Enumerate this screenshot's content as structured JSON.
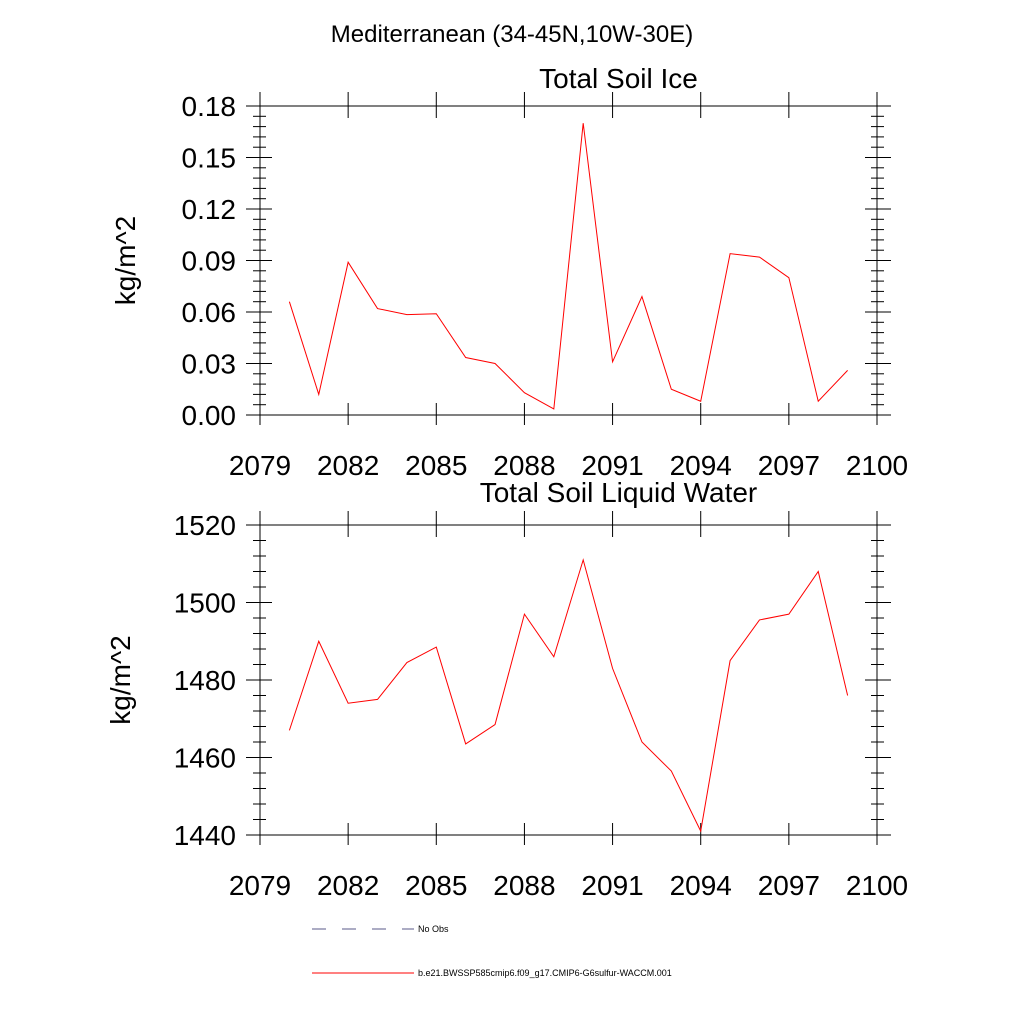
{
  "figure": {
    "suptitle": "Mediterranean (34-45N,10W-30E)"
  },
  "legend": {
    "items": [
      {
        "label": "No Obs",
        "style": "dashed",
        "color": "#5a5a8a"
      },
      {
        "label": "b.e21.BWSSP585cmip6.f09_g17.CMIP6-G6sulfur-WACCM.001",
        "style": "solid",
        "color": "#ff0000"
      }
    ]
  },
  "chart_data": [
    {
      "type": "line",
      "title": "Total Soil Ice",
      "xlabel": "",
      "ylabel": "kg/m^2",
      "xlim": [
        2079,
        2100
      ],
      "ylim": [
        0,
        0.18
      ],
      "xticks": [
        2079,
        2082,
        2085,
        2088,
        2091,
        2094,
        2097,
        2100
      ],
      "xtick_labels": [
        "2079",
        "2082",
        "2085",
        "2088",
        "2091",
        "2094",
        "2097",
        "2100"
      ],
      "yticks": [
        0,
        0.03,
        0.06,
        0.09,
        0.12,
        0.15,
        0.18
      ],
      "ytick_labels": [
        "0.00",
        "0.03",
        "0.06",
        "0.09",
        "0.12",
        "0.15",
        "0.18"
      ],
      "grid": false,
      "series": [
        {
          "name": "b.e21.BWSSP585cmip6.f09_g17.CMIP6-G6sulfur-WACCM.001",
          "color": "#ff0000",
          "x": [
            2080,
            2081,
            2082,
            2083,
            2084,
            2085,
            2086,
            2087,
            2088,
            2089,
            2090,
            2091,
            2092,
            2093,
            2094,
            2095,
            2096,
            2097,
            2098,
            2099
          ],
          "values": [
            0.066,
            0.012,
            0.089,
            0.062,
            0.0585,
            0.059,
            0.0335,
            0.03,
            0.013,
            0.0035,
            0.17,
            0.031,
            0.069,
            0.015,
            0.008,
            0.094,
            0.092,
            0.08,
            0.008,
            0.026
          ]
        }
      ]
    },
    {
      "type": "line",
      "title": "Total Soil Liquid Water",
      "xlabel": "",
      "ylabel": "kg/m^2",
      "xlim": [
        2079,
        2100
      ],
      "ylim": [
        1440,
        1520
      ],
      "xticks": [
        2079,
        2082,
        2085,
        2088,
        2091,
        2094,
        2097,
        2100
      ],
      "xtick_labels": [
        "2079",
        "2082",
        "2085",
        "2088",
        "2091",
        "2094",
        "2097",
        "2100"
      ],
      "yticks": [
        1440,
        1460,
        1480,
        1500,
        1520
      ],
      "ytick_labels": [
        "1440",
        "1460",
        "1480",
        "1500",
        "1520"
      ],
      "grid": false,
      "series": [
        {
          "name": "b.e21.BWSSP585cmip6.f09_g17.CMIP6-G6sulfur-WACCM.001",
          "color": "#ff0000",
          "x": [
            2080,
            2081,
            2082,
            2083,
            2084,
            2085,
            2086,
            2087,
            2088,
            2089,
            2090,
            2091,
            2092,
            2093,
            2094,
            2095,
            2096,
            2097,
            2098,
            2099
          ],
          "values": [
            1467,
            1490,
            1474,
            1475,
            1484.5,
            1488.5,
            1463.5,
            1468.5,
            1497,
            1486,
            1511,
            1483,
            1464,
            1456.5,
            1441,
            1485,
            1495.5,
            1497,
            1508,
            1476
          ]
        }
      ]
    }
  ]
}
